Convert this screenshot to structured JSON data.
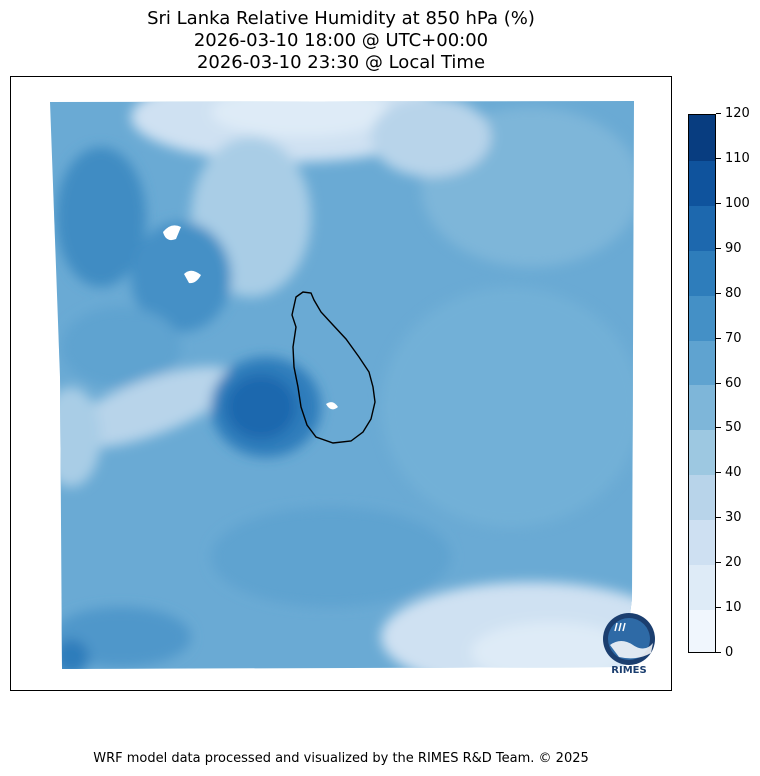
{
  "title": {
    "line1": "Sri Lanka Relative Humidity at 850 hPa (%)",
    "line2": "2026-03-10 18:00 @ UTC+00:00",
    "line3": "2026-03-10 23:30 @ Local Time"
  },
  "colorbar": {
    "ticks": [
      "0",
      "10",
      "20",
      "30",
      "40",
      "50",
      "60",
      "70",
      "80",
      "90",
      "100",
      "110",
      "120"
    ],
    "colors": [
      "#f0f6fd",
      "#deebf7",
      "#cee0f2",
      "#b8d4ea",
      "#9dc8e1",
      "#7eb6d9",
      "#5fa3d0",
      "#4490c6",
      "#2e7dbb",
      "#1d68ae",
      "#0f539d",
      "#083d80"
    ]
  },
  "logo": {
    "text": "RIMES",
    "icon": "rimes-globe-logo-icon"
  },
  "footer": "WRF model data processed and visualized by the RIMES R&D Team. © 2025"
}
